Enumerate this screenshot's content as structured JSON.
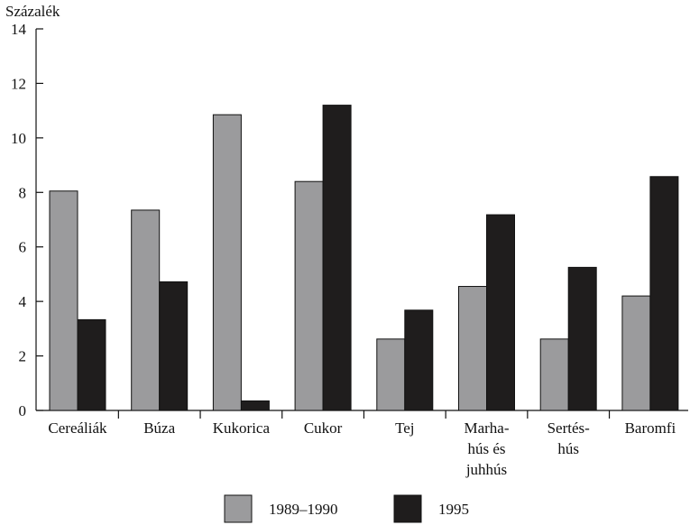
{
  "chart_data": {
    "type": "bar",
    "ylabel": "Százalék",
    "xlabel": "",
    "ylim": [
      0,
      14
    ],
    "yticks": [
      0,
      2,
      4,
      6,
      8,
      10,
      12,
      14
    ],
    "yticks_labels": [
      "0",
      "2",
      "4",
      "6",
      "8",
      "10",
      "12",
      "14"
    ],
    "categories": [
      [
        "Cereáliák"
      ],
      [
        "Búza"
      ],
      [
        "Kukorica"
      ],
      [
        "Cukor"
      ],
      [
        "Tej"
      ],
      [
        "Marha-",
        "hús és",
        "juhhús"
      ],
      [
        "Sertés-",
        "hús"
      ],
      [
        "Baromfi"
      ]
    ],
    "series": [
      {
        "name": "1989–1990",
        "values": [
          8.05,
          7.35,
          10.85,
          8.4,
          2.62,
          4.55,
          2.62,
          4.2
        ],
        "color": "#9b9b9d"
      },
      {
        "name": "1995",
        "values": [
          3.33,
          4.72,
          0.35,
          11.2,
          3.68,
          7.18,
          5.25,
          8.58
        ],
        "color": "#1f1d1d"
      }
    ],
    "grid": false,
    "legend_position": "bottom-center"
  }
}
